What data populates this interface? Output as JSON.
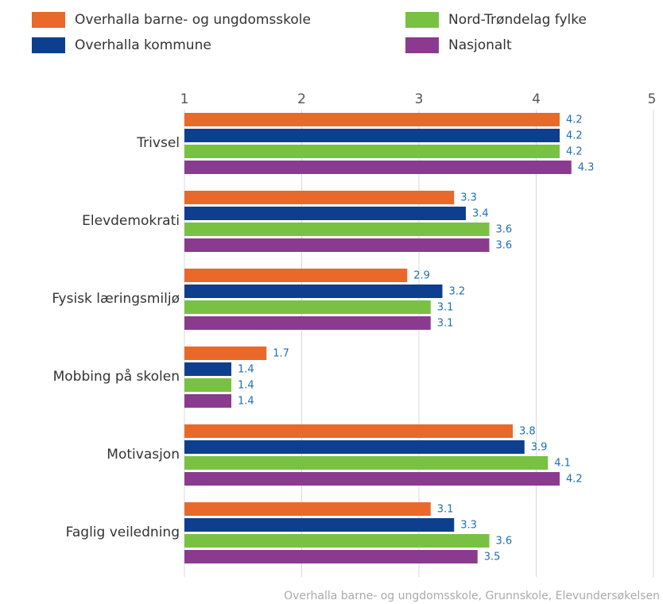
{
  "chart_data": {
    "type": "hbar",
    "categories": [
      "Trivsel",
      "Elevdemokrati",
      "Fysisk læringsmiljø",
      "Mobbing på skolen",
      "Motivasjon",
      "Faglig veiledning"
    ],
    "series": [
      {
        "name": "Overhalla barne- og ungdomsskole",
        "color": "#e8692a",
        "values": [
          4.2,
          3.3,
          2.9,
          1.7,
          3.8,
          3.1
        ]
      },
      {
        "name": "Overhalla kommune",
        "color": "#0d3f8e",
        "values": [
          4.2,
          3.4,
          3.2,
          1.4,
          3.9,
          3.3
        ]
      },
      {
        "name": "Nord-Trøndelag fylke",
        "color": "#79c143",
        "values": [
          4.2,
          3.6,
          3.1,
          1.4,
          4.1,
          3.6
        ]
      },
      {
        "name": "Nasjonalt",
        "color": "#8a3b8f",
        "values": [
          4.3,
          3.6,
          3.1,
          1.4,
          4.2,
          3.5
        ]
      }
    ],
    "xlim": [
      1,
      5
    ],
    "xticks": [
      1,
      2,
      3,
      4,
      5
    ],
    "grid": true,
    "footnote": "Overhalla barne- og ungdomsskole, Grunnskole, Elevundersøkelsen"
  }
}
